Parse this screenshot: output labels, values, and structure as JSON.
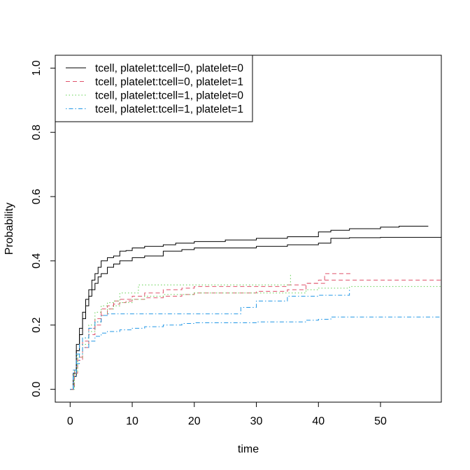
{
  "chart_data": {
    "type": "line",
    "title": "",
    "xlabel": "time",
    "ylabel": "Probability",
    "xlim": [
      -2.4,
      59.8
    ],
    "ylim": [
      -0.04,
      1.04
    ],
    "xticks": [
      0,
      10,
      20,
      30,
      40,
      50
    ],
    "xtick_labels": [
      "0",
      "10",
      "20",
      "30",
      "40",
      "50"
    ],
    "yticks": [
      0.0,
      0.2,
      0.4,
      0.6,
      0.8,
      1.0
    ],
    "ytick_labels": [
      "0.0",
      "0.2",
      "0.4",
      "0.6",
      "0.8",
      "1.0"
    ],
    "grid": false,
    "legend_position": "top-left",
    "series": [
      {
        "name": "tcell, platelet:tcell=0, platelet=0",
        "color": "#000000",
        "line_style": "solid",
        "curves": [
          [
            [
              0,
              0
            ],
            [
              0.5,
              0.05
            ],
            [
              1,
              0.14
            ],
            [
              1.5,
              0.19
            ],
            [
              2,
              0.24
            ],
            [
              2.5,
              0.28
            ],
            [
              3,
              0.31
            ],
            [
              3.5,
              0.34
            ],
            [
              4,
              0.36
            ],
            [
              4.5,
              0.38
            ],
            [
              5,
              0.4
            ],
            [
              6,
              0.41
            ],
            [
              7,
              0.415
            ],
            [
              8,
              0.43
            ],
            [
              9,
              0.432
            ],
            [
              10,
              0.44
            ],
            [
              12,
              0.445
            ],
            [
              15,
              0.45
            ],
            [
              17,
              0.455
            ],
            [
              20,
              0.46
            ],
            [
              25,
              0.465
            ],
            [
              30,
              0.47
            ],
            [
              35,
              0.475
            ],
            [
              40,
              0.49
            ],
            [
              42,
              0.495
            ],
            [
              45,
              0.5
            ],
            [
              50,
              0.505
            ],
            [
              53,
              0.508
            ],
            [
              57.7,
              0.508
            ]
          ],
          [
            [
              0,
              0
            ],
            [
              0.5,
              0.04
            ],
            [
              1,
              0.12
            ],
            [
              1.5,
              0.17
            ],
            [
              2,
              0.22
            ],
            [
              2.5,
              0.26
            ],
            [
              3,
              0.29
            ],
            [
              3.5,
              0.31
            ],
            [
              4,
              0.33
            ],
            [
              4.5,
              0.35
            ],
            [
              5,
              0.36
            ],
            [
              6,
              0.38
            ],
            [
              7,
              0.39
            ],
            [
              8,
              0.4
            ],
            [
              10,
              0.41
            ],
            [
              12,
              0.415
            ],
            [
              15,
              0.43
            ],
            [
              18,
              0.435
            ],
            [
              20,
              0.44
            ],
            [
              25,
              0.44
            ],
            [
              30,
              0.445
            ],
            [
              35,
              0.45
            ],
            [
              40,
              0.455
            ],
            [
              42,
              0.47
            ],
            [
              45,
              0.472
            ],
            [
              50,
              0.473
            ],
            [
              59.8,
              0.473
            ]
          ]
        ]
      },
      {
        "name": "tcell, platelet:tcell=0, platelet=1",
        "color": "#DF536B",
        "line_style": "dashed",
        "curves": [
          [
            [
              0,
              0
            ],
            [
              0.7,
              0.05
            ],
            [
              1.2,
              0.09
            ],
            [
              2,
              0.13
            ],
            [
              3,
              0.17
            ],
            [
              4,
              0.2
            ],
            [
              5,
              0.23
            ],
            [
              6,
              0.25
            ],
            [
              7,
              0.265
            ],
            [
              8,
              0.27
            ],
            [
              9,
              0.275
            ],
            [
              10,
              0.28
            ],
            [
              12,
              0.285
            ],
            [
              15,
              0.29
            ],
            [
              18,
              0.295
            ],
            [
              20,
              0.3
            ],
            [
              25,
              0.3
            ],
            [
              30,
              0.305
            ],
            [
              35,
              0.31
            ],
            [
              38,
              0.33
            ],
            [
              40,
              0.34
            ],
            [
              45,
              0.34
            ],
            [
              59.8,
              0.34
            ]
          ],
          [
            [
              0,
              0
            ],
            [
              0.7,
              0.06
            ],
            [
              1.2,
              0.1
            ],
            [
              2,
              0.15
            ],
            [
              3,
              0.19
            ],
            [
              4,
              0.22
            ],
            [
              5,
              0.25
            ],
            [
              6,
              0.26
            ],
            [
              7,
              0.275
            ],
            [
              8,
              0.28
            ],
            [
              10,
              0.29
            ],
            [
              12,
              0.3
            ],
            [
              15,
              0.31
            ],
            [
              18,
              0.315
            ],
            [
              20,
              0.32
            ],
            [
              25,
              0.32
            ],
            [
              30,
              0.32
            ],
            [
              35,
              0.325
            ],
            [
              38,
              0.33
            ],
            [
              41,
              0.36
            ],
            [
              45.5,
              0.36
            ]
          ]
        ]
      },
      {
        "name": "tcell, platelet:tcell=1, platelet=0",
        "color": "#61D04F",
        "line_style": "dotted",
        "curves": [
          [
            [
              0,
              0
            ],
            [
              0.7,
              0.06
            ],
            [
              1.2,
              0.11
            ],
            [
              2,
              0.16
            ],
            [
              3,
              0.2
            ],
            [
              4,
              0.24
            ],
            [
              5,
              0.26
            ],
            [
              6,
              0.27
            ],
            [
              7,
              0.275
            ],
            [
              8,
              0.3
            ],
            [
              10,
              0.3
            ],
            [
              11,
              0.325
            ],
            [
              15,
              0.325
            ],
            [
              20,
              0.325
            ],
            [
              30,
              0.325
            ],
            [
              35.5,
              0.325
            ],
            [
              35.5,
              0.36
            ]
          ],
          [
            [
              0,
              0
            ],
            [
              0.7,
              0.05
            ],
            [
              1.2,
              0.1
            ],
            [
              2,
              0.14
            ],
            [
              3,
              0.18
            ],
            [
              4,
              0.21
            ],
            [
              5,
              0.23
            ],
            [
              6,
              0.25
            ],
            [
              7,
              0.26
            ],
            [
              8,
              0.27
            ],
            [
              10,
              0.28
            ],
            [
              12,
              0.29
            ],
            [
              15,
              0.295
            ],
            [
              20,
              0.3
            ],
            [
              25,
              0.3
            ],
            [
              30,
              0.3
            ],
            [
              35,
              0.3
            ],
            [
              38,
              0.31
            ],
            [
              40,
              0.315
            ],
            [
              45,
              0.32
            ],
            [
              59.8,
              0.322
            ]
          ]
        ]
      },
      {
        "name": "tcell, platelet:tcell=1, platelet=1",
        "color": "#2297E6",
        "line_style": "dotdash",
        "curves": [
          [
            [
              0,
              0
            ],
            [
              0.5,
              0.04
            ],
            [
              1,
              0.08
            ],
            [
              1.5,
              0.11
            ],
            [
              2,
              0.13
            ],
            [
              3,
              0.15
            ],
            [
              4,
              0.165
            ],
            [
              5,
              0.175
            ],
            [
              6,
              0.18
            ],
            [
              8,
              0.185
            ],
            [
              10,
              0.19
            ],
            [
              12,
              0.195
            ],
            [
              15,
              0.2
            ],
            [
              18,
              0.205
            ],
            [
              20,
              0.207
            ],
            [
              25,
              0.207
            ],
            [
              30,
              0.21
            ],
            [
              35,
              0.21
            ],
            [
              38,
              0.215
            ],
            [
              40,
              0.218
            ],
            [
              42,
              0.225
            ],
            [
              59.8,
              0.225
            ]
          ],
          [
            [
              0,
              0
            ],
            [
              0.5,
              0.06
            ],
            [
              1,
              0.11
            ],
            [
              1.5,
              0.14
            ],
            [
              2,
              0.16
            ],
            [
              3,
              0.19
            ],
            [
              4,
              0.21
            ],
            [
              5,
              0.23
            ],
            [
              6,
              0.235
            ],
            [
              10,
              0.235
            ],
            [
              20,
              0.235
            ],
            [
              27.5,
              0.235
            ],
            [
              27.5,
              0.255
            ],
            [
              30,
              0.275
            ],
            [
              35,
              0.29
            ],
            [
              40,
              0.293
            ],
            [
              45,
              0.31
            ]
          ]
        ]
      }
    ]
  }
}
